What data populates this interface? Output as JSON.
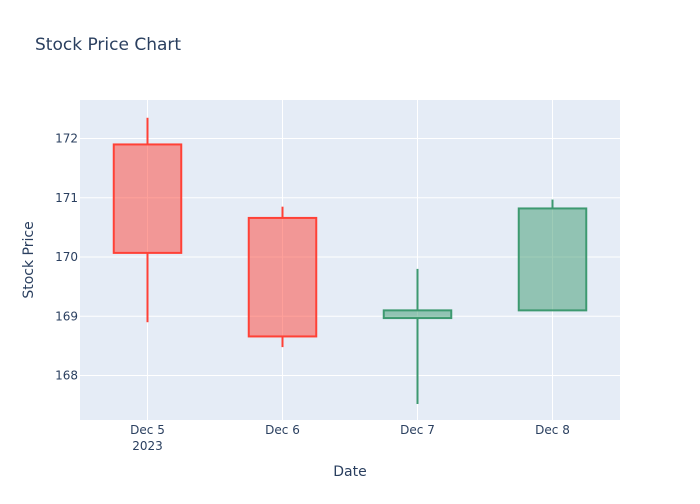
{
  "chart_data": {
    "type": "candlestick",
    "title": "Stock Price Chart",
    "xlabel": "Date",
    "ylabel": "Stock Price",
    "ylim": [
      167.25,
      172.65
    ],
    "y_ticks": [
      168,
      169,
      170,
      171,
      172
    ],
    "x_ticks": [
      {
        "label": "Dec 5",
        "sublabel": "2023"
      },
      {
        "label": "Dec 6",
        "sublabel": ""
      },
      {
        "label": "Dec 7",
        "sublabel": ""
      },
      {
        "label": "Dec 8",
        "sublabel": ""
      }
    ],
    "candles": [
      {
        "date": "2023-12-05",
        "open": 171.9,
        "high": 172.35,
        "low": 168.9,
        "close": 170.07
      },
      {
        "date": "2023-12-06",
        "open": 170.66,
        "high": 170.85,
        "low": 168.48,
        "close": 168.66
      },
      {
        "date": "2023-12-07",
        "open": 168.97,
        "high": 169.8,
        "low": 167.52,
        "close": 169.1
      },
      {
        "date": "2023-12-08",
        "open": 169.1,
        "high": 170.97,
        "low": 169.1,
        "close": 170.82
      }
    ],
    "grid": true,
    "colors": {
      "increasing": "#3d9970",
      "decreasing": "#ff4136",
      "plot_background": "#e5ecf6",
      "grid": "#ffffff",
      "text": "#2a3f5f"
    }
  }
}
